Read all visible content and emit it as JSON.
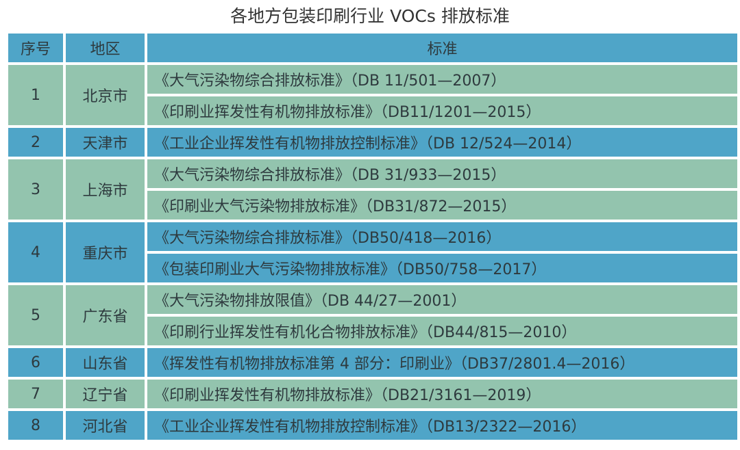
{
  "title": "各地方包装印刷行业 VOCs 排放标准",
  "colors": {
    "header": "#4fa5c8",
    "row_green": "#93c4ae",
    "row_blue": "#4fa5c8"
  },
  "headers": [
    "序号",
    "地区",
    "标准"
  ],
  "rows": [
    {
      "no": "1",
      "region": "北京市",
      "standards": [
        "《大气污染物综合排放标准》（DB 11/501—2007）",
        "《印刷业挥发性有机物排放标准》（DB11/1201—2015）"
      ]
    },
    {
      "no": "2",
      "region": "天津市",
      "standards": [
        "《工业企业挥发性有机物排放控制标准》（DB 12/524—2014）"
      ]
    },
    {
      "no": "3",
      "region": "上海市",
      "standards": [
        "《大气污染物综合排放标准》（DB 31/933—2015）",
        "《印刷业大气污染物排放标准》（DB31/872—2015）"
      ]
    },
    {
      "no": "4",
      "region": "重庆市",
      "standards": [
        "《大气污染物综合排放标准》（DB50/418—2016）",
        "《包装印刷业大气污染物排放标准》（DB50/758—2017）"
      ]
    },
    {
      "no": "5",
      "region": "广东省",
      "standards": [
        "《大气污染物排放限值》（DB 44/27—2001）",
        "《印刷行业挥发性有机化合物排放标准》（DB44/815—2010）"
      ]
    },
    {
      "no": "6",
      "region": "山东省",
      "standards": [
        "《挥发性有机物排放标准第 4 部分：印刷业》（DB37/2801.4—2016）"
      ]
    },
    {
      "no": "7",
      "region": "辽宁省",
      "standards": [
        "《印刷业挥发性有机物排放标准》（DB21/3161—2019）"
      ]
    },
    {
      "no": "8",
      "region": "河北省",
      "standards": [
        "《工业企业挥发性有机物排放控制标准》（DB13/2322—2016）"
      ]
    }
  ]
}
